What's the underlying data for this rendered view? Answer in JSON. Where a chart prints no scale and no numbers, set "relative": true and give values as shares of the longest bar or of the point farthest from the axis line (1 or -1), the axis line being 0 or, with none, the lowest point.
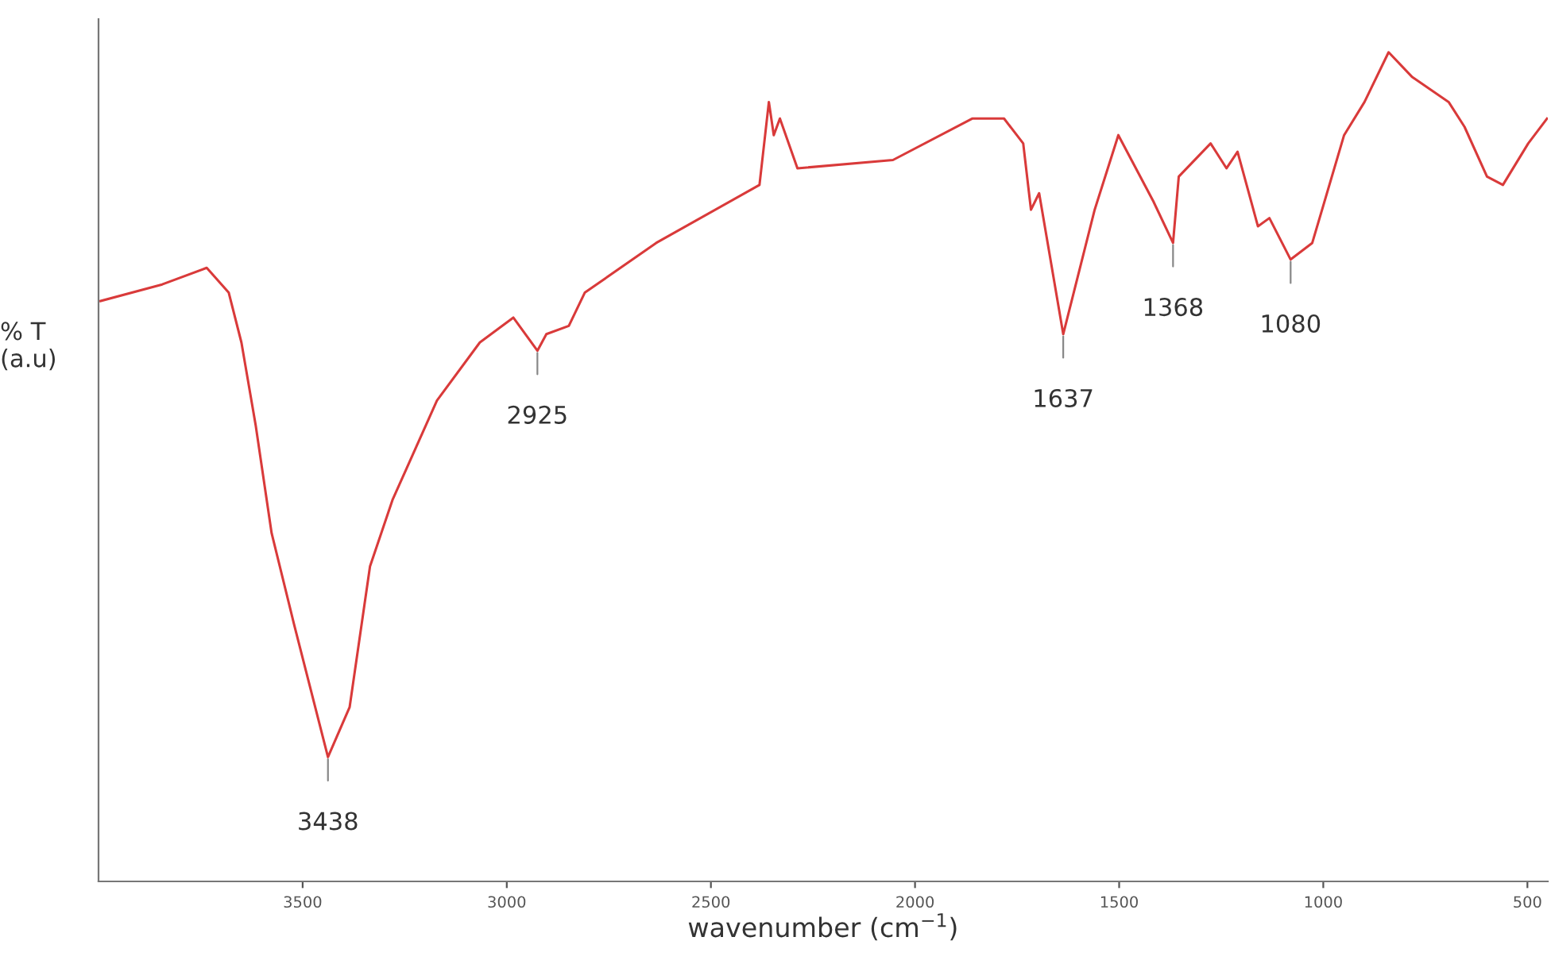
{
  "chart_data": {
    "type": "line",
    "xlabel": "wavenumber (cm$^{−1}$)",
    "ylabel": "% T\n(a.u)",
    "relative": true,
    "xlim": [
      4000,
      450
    ],
    "xticks": [
      3500,
      3000,
      2500,
      2000,
      1500,
      1000,
      500
    ],
    "x": [
      3995,
      3844,
      3735,
      3681,
      3650,
      3615,
      3576,
      3521,
      3438,
      3385,
      3335,
      3280,
      3171,
      3066,
      2984,
      2925,
      2903,
      2848,
      2809,
      2634,
      2381,
      2358,
      2346,
      2331,
      2288,
      2054,
      1860,
      1782,
      1735,
      1716,
      1696,
      1637,
      1560,
      1502,
      1416,
      1368,
      1354,
      1276,
      1237,
      1210,
      1160,
      1132,
      1080,
      1027,
      949,
      899,
      840,
      782,
      693,
      654,
      599,
      560,
      498,
      452
    ],
    "series": [
      {
        "color": "#d93a3a",
        "values": [
          0.7,
          0.72,
          0.74,
          0.71,
          0.65,
          0.55,
          0.42,
          0.31,
          0.15,
          0.21,
          0.38,
          0.46,
          0.58,
          0.65,
          0.68,
          0.64,
          0.66,
          0.67,
          0.71,
          0.77,
          0.84,
          0.94,
          0.9,
          0.92,
          0.86,
          0.87,
          0.92,
          0.92,
          0.89,
          0.81,
          0.83,
          0.66,
          0.81,
          0.9,
          0.82,
          0.77,
          0.85,
          0.89,
          0.86,
          0.88,
          0.79,
          0.8,
          0.75,
          0.77,
          0.9,
          0.94,
          1.0,
          0.97,
          0.94,
          0.91,
          0.85,
          0.84,
          0.89,
          0.92
        ]
      }
    ],
    "annotations": [
      {
        "text": "3438",
        "x": 3438,
        "y": 0.15
      },
      {
        "text": "2925",
        "x": 2925,
        "y": 0.64
      },
      {
        "text": "1637",
        "x": 1637,
        "y": 0.66
      },
      {
        "text": "1368",
        "x": 1368,
        "y": 0.77
      },
      {
        "text": "1080",
        "x": 1080,
        "y": 0.75
      }
    ],
    "grid": false
  }
}
